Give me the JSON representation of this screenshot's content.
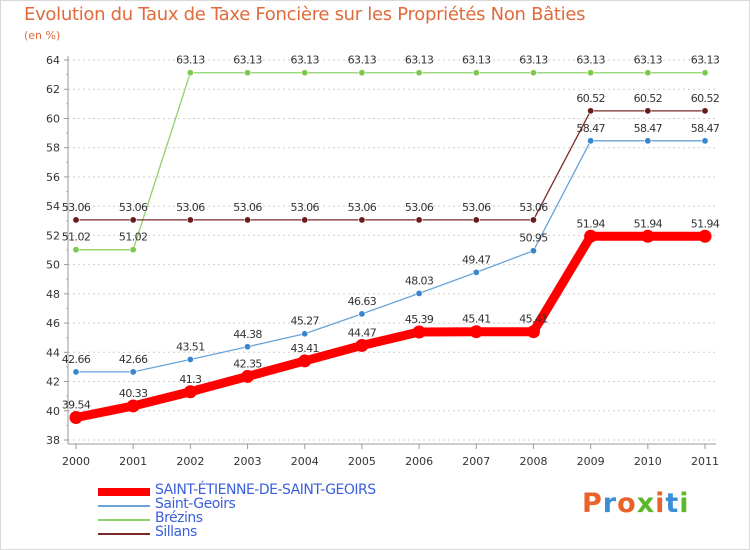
{
  "title": "Evolution du Taux de Taxe Foncière sur les Propriétés Non Bâties",
  "unit_label": "(en %)",
  "brand_text": "Proxiti",
  "brand_colors": [
    "#e8622a",
    "#3a8fd8",
    "#e8622a",
    "#5cb82a",
    "#e8622a",
    "#3a8fd8",
    "#5cb82a"
  ],
  "chart_data": {
    "type": "line",
    "title": "Evolution du Taux de Taxe Foncière sur les Propriétés Non Bâties",
    "ylabel": "(en %)",
    "xlabel": "",
    "x": [
      "2000",
      "2001",
      "2002",
      "2003",
      "2004",
      "2005",
      "2006",
      "2007",
      "2008",
      "2009",
      "2010",
      "2011"
    ],
    "ylim": [
      38,
      64
    ],
    "yticks": [
      38,
      40,
      42,
      44,
      46,
      48,
      50,
      52,
      54,
      56,
      58,
      60,
      62,
      64
    ],
    "grid": "horizontal dashed",
    "legend_position": "bottom-left",
    "series": [
      {
        "name": "SAINT-ÉTIENNE-DE-SAINT-GEOIRS",
        "color": "#ff0000",
        "marker_color": "#ff0000",
        "emphasis": "thick",
        "values": [
          39.54,
          40.33,
          41.3,
          42.35,
          43.41,
          44.47,
          45.39,
          45.41,
          45.41,
          51.94,
          51.94,
          51.94
        ],
        "labels": [
          "39.54",
          "40.33",
          "41.3",
          "42.35",
          "43.41",
          "44.47",
          "45.39",
          "45.41",
          "45.41",
          "51.94",
          "51.94",
          "51.94"
        ]
      },
      {
        "name": "Saint-Geoirs",
        "color": "#6aa3d8",
        "marker_color": "#3a86cc",
        "emphasis": "thin",
        "values": [
          42.66,
          42.66,
          43.51,
          44.38,
          45.27,
          46.63,
          48.03,
          49.47,
          50.95,
          58.47,
          58.47,
          58.47
        ],
        "labels": [
          "42.66",
          "42.66",
          "43.51",
          "44.38",
          "45.27",
          "46.63",
          "48.03",
          "49.47",
          "50.95",
          "58.47",
          "58.47",
          "58.47"
        ]
      },
      {
        "name": "Brézins",
        "color": "#8ed36a",
        "marker_color": "#7cc850",
        "emphasis": "thin",
        "values": [
          51.02,
          51.02,
          63.13,
          63.13,
          63.13,
          63.13,
          63.13,
          63.13,
          63.13,
          63.13,
          63.13,
          63.13
        ],
        "labels": [
          "51.02",
          "51.02",
          "63.13",
          "63.13",
          "63.13",
          "63.13",
          "63.13",
          "63.13",
          "63.13",
          "63.13",
          "63.13",
          "63.13"
        ]
      },
      {
        "name": "Sillans",
        "color": "#7a2a2a",
        "marker_color": "#6a1c1c",
        "emphasis": "thin",
        "values": [
          53.06,
          53.06,
          53.06,
          53.06,
          53.06,
          53.06,
          53.06,
          53.06,
          53.06,
          60.52,
          60.52,
          60.52
        ],
        "labels": [
          "53.06",
          "53.06",
          "53.06",
          "53.06",
          "53.06",
          "53.06",
          "53.06",
          "53.06",
          "53.06",
          "60.52",
          "60.52",
          "60.52"
        ]
      }
    ]
  }
}
